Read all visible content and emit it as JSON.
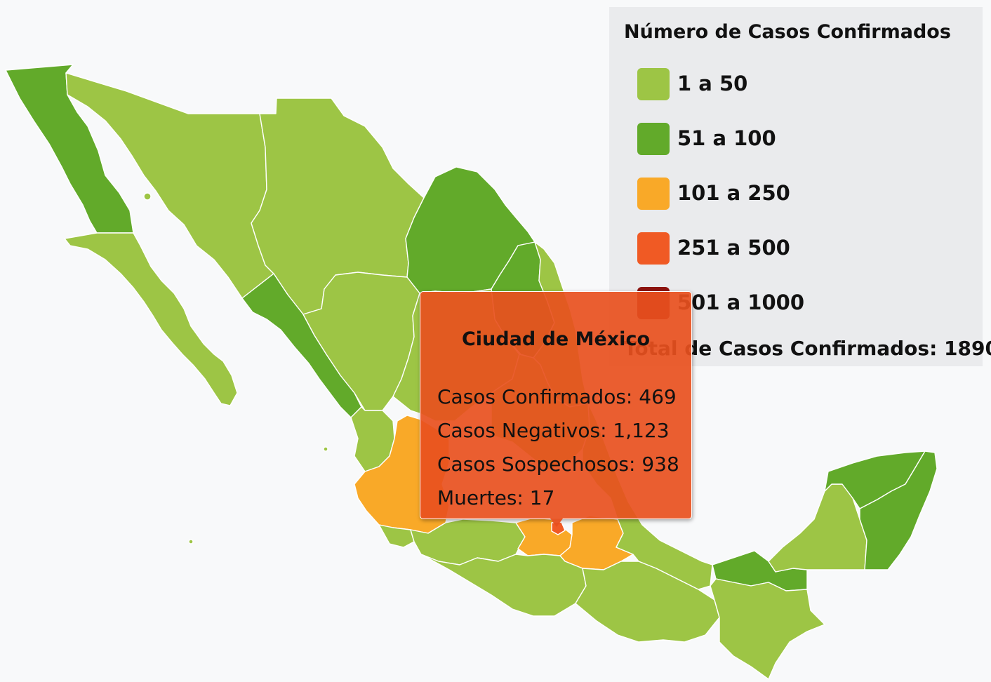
{
  "map": {
    "colors": {
      "range_1_50": "#9dc545",
      "range_51_100": "#62aa2a",
      "range_101_250": "#f9a928",
      "range_251_500": "#f05a24",
      "range_501_1000": "#8d1410",
      "background": "#f8f9fa",
      "border": "#ffffff"
    },
    "states": [
      {
        "name": "Baja California",
        "range": "51 a 100"
      },
      {
        "name": "Baja California Sur",
        "range": "1 a 50"
      },
      {
        "name": "Sonora",
        "range": "1 a 50"
      },
      {
        "name": "Chihuahua",
        "range": "1 a 50"
      },
      {
        "name": "Coahuila",
        "range": "51 a 100"
      },
      {
        "name": "Nuevo León",
        "range": "51 a 100"
      },
      {
        "name": "Tamaulipas",
        "range": "1 a 50"
      },
      {
        "name": "Sinaloa",
        "range": "51 a 100"
      },
      {
        "name": "Durango",
        "range": "1 a 50"
      },
      {
        "name": "Zacatecas",
        "range": "1 a 50"
      },
      {
        "name": "Nayarit",
        "range": "1 a 50"
      },
      {
        "name": "Jalisco",
        "range": "101 a 250"
      },
      {
        "name": "Colima",
        "range": "1 a 50"
      },
      {
        "name": "Michoacán",
        "range": "1 a 50"
      },
      {
        "name": "Estado de México",
        "range": "101 a 250"
      },
      {
        "name": "Ciudad de México",
        "range": "251 a 500"
      },
      {
        "name": "Puebla",
        "range": "101 a 250"
      },
      {
        "name": "Guerrero",
        "range": "1 a 50"
      },
      {
        "name": "Oaxaca",
        "range": "1 a 50"
      },
      {
        "name": "Veracruz",
        "range": "1 a 50"
      },
      {
        "name": "Tabasco",
        "range": "51 a 100"
      },
      {
        "name": "Chiapas",
        "range": "1 a 50"
      },
      {
        "name": "Campeche",
        "range": "1 a 50"
      },
      {
        "name": "Yucatán",
        "range": "51 a 100"
      },
      {
        "name": "Quintana Roo",
        "range": "51 a 100"
      }
    ]
  },
  "legend": {
    "title": "Número de Casos Confirmados",
    "items": [
      {
        "label": "1 a 50",
        "color": "#9dc545"
      },
      {
        "label": "51 a 100",
        "color": "#62aa2a"
      },
      {
        "label": "101 a 250",
        "color": "#f9a928"
      },
      {
        "label": "251 a 500",
        "color": "#f05a24"
      },
      {
        "label": "501 a 1000",
        "color": "#8d1410"
      }
    ],
    "total_label": "Total de Casos Confirmados: 1890"
  },
  "tooltip": {
    "title": "Ciudad de México",
    "lines": [
      "Casos Confirmados: 469",
      "Casos Negativos: 1,123",
      "Casos Sospechosos: 938",
      "Muertes: 17"
    ],
    "color": "#e8501e"
  }
}
